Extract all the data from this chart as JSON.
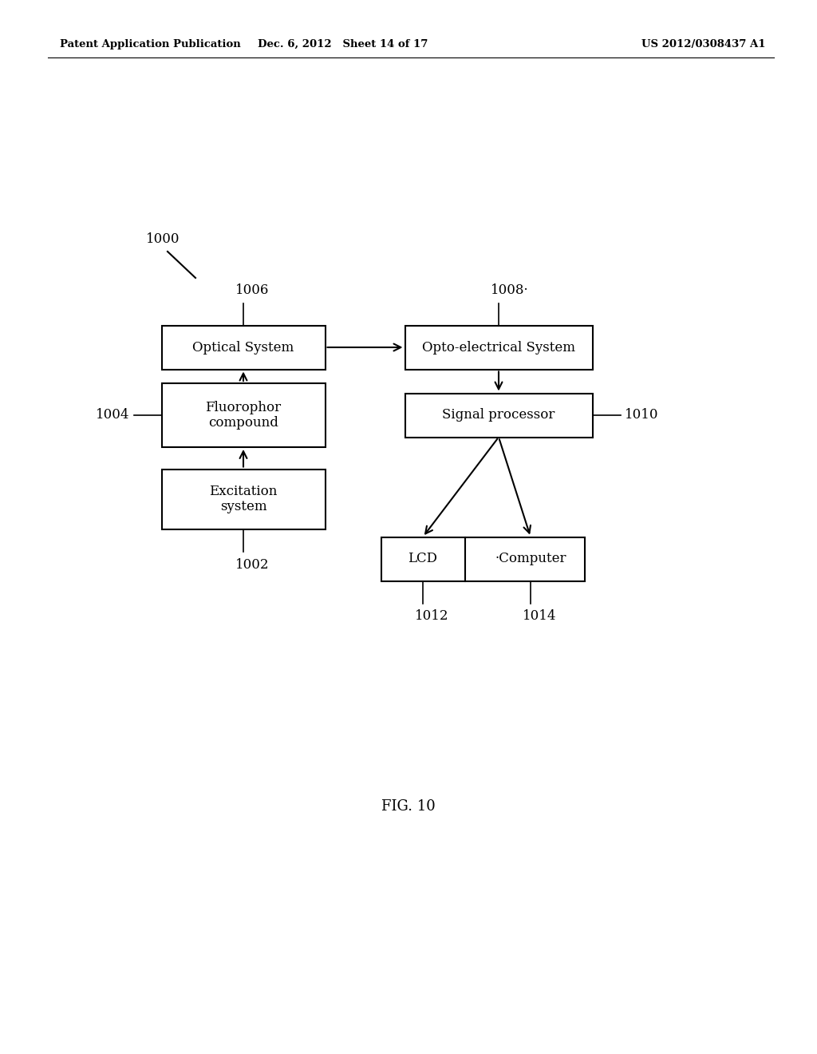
{
  "bg_color": "#ffffff",
  "fig_caption": "FIG. 10",
  "header_left": "Patent Application Publication",
  "header_mid": "Dec. 6, 2012   Sheet 14 of 17",
  "header_right": "US 2012/0308437 A1",
  "label_1000": "1000",
  "label_1002": "1002",
  "label_1004": "1004",
  "label_1006": "1006",
  "label_1008": "1008·",
  "label_1010": "1010",
  "label_1012": "1012",
  "label_1014": "1014",
  "lcd_label": "LCD",
  "computer_label": "·Computer"
}
